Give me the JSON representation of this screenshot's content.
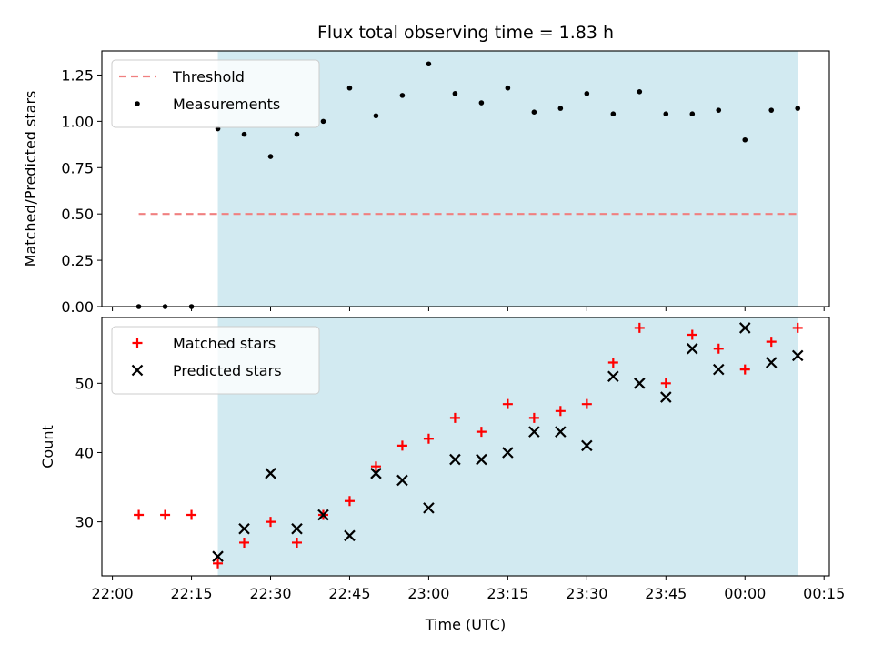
{
  "chart_data": {
    "title": "Flux total observing time = 1.83 h",
    "xlabel": "Time (UTC)",
    "x_ticks": [
      "22:00",
      "22:15",
      "22:30",
      "22:45",
      "23:00",
      "23:15",
      "23:30",
      "23:45",
      "00:00",
      "00:15"
    ],
    "xlim": [
      "21:58",
      "00:16"
    ],
    "shaded_interval": [
      "22:20",
      "00:10"
    ],
    "shade_color": "#add8e6",
    "panels": [
      {
        "type": "scatter",
        "ylabel": "Matched/Predicted stars",
        "ylim": [
          0,
          1.38
        ],
        "y_ticks": [
          "0.00",
          "0.25",
          "0.50",
          "0.75",
          "1.00",
          "1.25"
        ],
        "legend_position": "upper-left",
        "threshold": {
          "name": "Threshold",
          "y": 0.5,
          "x_range": [
            "22:05",
            "00:10"
          ],
          "color": "#f08080"
        },
        "series": [
          {
            "name": "Measurements",
            "marker": "dot",
            "color": "#000000",
            "x": [
              "22:05",
              "22:10",
              "22:15",
              "22:20",
              "22:25",
              "22:30",
              "22:35",
              "22:40",
              "22:45",
              "22:50",
              "22:55",
              "23:00",
              "23:05",
              "23:10",
              "23:15",
              "23:20",
              "23:25",
              "23:30",
              "23:35",
              "23:40",
              "23:45",
              "23:50",
              "23:55",
              "00:00",
              "00:05",
              "00:10"
            ],
            "y": [
              0,
              0,
              0,
              0.96,
              0.93,
              0.81,
              0.93,
              1.0,
              1.18,
              1.03,
              1.14,
              1.31,
              1.15,
              1.1,
              1.18,
              1.05,
              1.07,
              1.15,
              1.04,
              1.16,
              1.04,
              1.04,
              1.06,
              0.9,
              1.06,
              1.07
            ]
          }
        ]
      },
      {
        "type": "scatter",
        "ylabel": "Count",
        "ylim": [
          22.2,
          59.5
        ],
        "y_ticks": [
          "30",
          "40",
          "50"
        ],
        "legend_position": "upper-left",
        "series": [
          {
            "name": "Matched stars",
            "marker": "plus",
            "color": "#ff0000",
            "x": [
              "22:05",
              "22:10",
              "22:15",
              "22:20",
              "22:25",
              "22:30",
              "22:35",
              "22:40",
              "22:45",
              "22:50",
              "22:55",
              "23:00",
              "23:05",
              "23:10",
              "23:15",
              "23:20",
              "23:25",
              "23:30",
              "23:35",
              "23:40",
              "23:45",
              "23:50",
              "23:55",
              "00:00",
              "00:05",
              "00:10"
            ],
            "y": [
              31,
              31,
              31,
              24,
              27,
              30,
              27,
              31,
              33,
              38,
              41,
              42,
              45,
              43,
              47,
              45,
              46,
              47,
              53,
              58,
              50,
              57,
              55,
              52,
              56,
              58
            ]
          },
          {
            "name": "Predicted stars",
            "marker": "x",
            "color": "#000000",
            "x": [
              "22:20",
              "22:25",
              "22:30",
              "22:35",
              "22:40",
              "22:45",
              "22:50",
              "22:55",
              "23:00",
              "23:05",
              "23:10",
              "23:15",
              "23:20",
              "23:25",
              "23:30",
              "23:35",
              "23:40",
              "23:45",
              "23:50",
              "23:55",
              "00:00",
              "00:05",
              "00:10"
            ],
            "y": [
              25,
              29,
              37,
              29,
              31,
              28,
              37,
              36,
              32,
              39,
              39,
              40,
              43,
              43,
              41,
              51,
              50,
              48,
              55,
              52,
              58,
              53,
              54
            ]
          }
        ]
      }
    ]
  }
}
